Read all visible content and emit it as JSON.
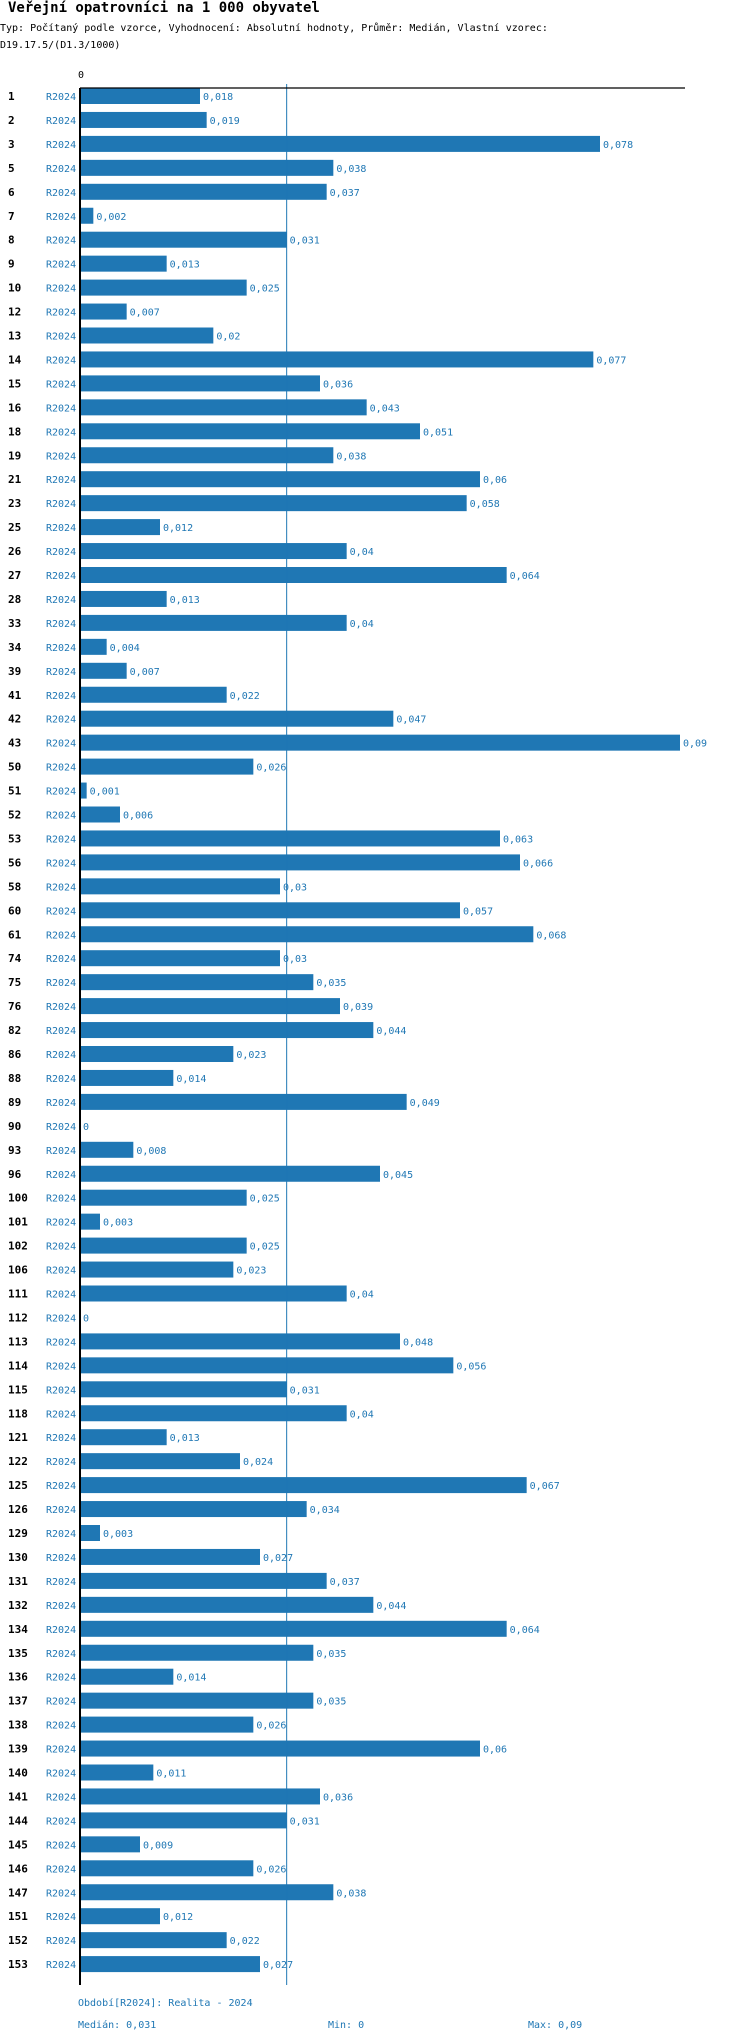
{
  "header": {
    "title": "Veřejní opatrovníci na 1 000 obyvatel",
    "subtitle": "Typ: Počítaný podle vzorce, Vyhodnocení: Absolutní hodnoty, Průměr: Medián, Vlastní vzorec: D19.17.5/(D1.3/1000)"
  },
  "chart_data": {
    "type": "bar",
    "orientation": "horizontal",
    "title": "Veřejní opatrovníci na 1 000 obyvatel",
    "series_label": "R2024",
    "axis_zero_label": "0",
    "xlim": [
      0,
      0.09
    ],
    "median": 0.031,
    "categories": [
      "1",
      "2",
      "3",
      "5",
      "6",
      "7",
      "8",
      "9",
      "10",
      "12",
      "13",
      "14",
      "15",
      "16",
      "18",
      "19",
      "21",
      "23",
      "25",
      "26",
      "27",
      "28",
      "33",
      "34",
      "39",
      "41",
      "42",
      "43",
      "50",
      "51",
      "52",
      "53",
      "56",
      "58",
      "60",
      "61",
      "74",
      "75",
      "76",
      "82",
      "86",
      "88",
      "89",
      "90",
      "93",
      "96",
      "100",
      "101",
      "102",
      "106",
      "111",
      "112",
      "113",
      "114",
      "115",
      "118",
      "121",
      "122",
      "125",
      "126",
      "129",
      "130",
      "131",
      "132",
      "134",
      "135",
      "136",
      "137",
      "138",
      "139",
      "140",
      "141",
      "144",
      "145",
      "146",
      "147",
      "151",
      "152",
      "153"
    ],
    "values": [
      0.018,
      0.019,
      0.078,
      0.038,
      0.037,
      0.002,
      0.031,
      0.013,
      0.025,
      0.007,
      0.02,
      0.077,
      0.036,
      0.043,
      0.051,
      0.038,
      0.06,
      0.058,
      0.012,
      0.04,
      0.064,
      0.013,
      0.04,
      0.004,
      0.007,
      0.022,
      0.047,
      0.09,
      0.026,
      0.001,
      0.006,
      0.063,
      0.066,
      0.03,
      0.057,
      0.068,
      0.03,
      0.035,
      0.039,
      0.044,
      0.023,
      0.014,
      0.049,
      0,
      0.008,
      0.045,
      0.025,
      0.003,
      0.025,
      0.023,
      0.04,
      0,
      0.048,
      0.056,
      0.031,
      0.04,
      0.013,
      0.024,
      0.067,
      0.034,
      0.003,
      0.027,
      0.037,
      0.044,
      0.064,
      0.035,
      0.014,
      0.035,
      0.026,
      0.06,
      0.011,
      0.036,
      0.031,
      0.009,
      0.026,
      0.038,
      0.012,
      0.022,
      0.027
    ],
    "value_labels": [
      "0,018",
      "0,019",
      "0,078",
      "0,038",
      "0,037",
      "0,002",
      "0,031",
      "0,013",
      "0,025",
      "0,007",
      "0,02",
      "0,077",
      "0,036",
      "0,043",
      "0,051",
      "0,038",
      "0,06",
      "0,058",
      "0,012",
      "0,04",
      "0,064",
      "0,013",
      "0,04",
      "0,004",
      "0,007",
      "0,022",
      "0,047",
      "0,09",
      "0,026",
      "0,001",
      "0,006",
      "0,063",
      "0,066",
      "0,03",
      "0,057",
      "0,068",
      "0,03",
      "0,035",
      "0,039",
      "0,044",
      "0,023",
      "0,014",
      "0,049",
      "0",
      "0,008",
      "0,045",
      "0,025",
      "0,003",
      "0,025",
      "0,023",
      "0,04",
      "0",
      "0,048",
      "0,056",
      "0,031",
      "0,04",
      "0,013",
      "0,024",
      "0,067",
      "0,034",
      "0,003",
      "0,027",
      "0,037",
      "0,044",
      "0,064",
      "0,035",
      "0,014",
      "0,035",
      "0,026",
      "0,06",
      "0,011",
      "0,036",
      "0,031",
      "0,009",
      "0,026",
      "0,038",
      "0,012",
      "0,022",
      "0,027"
    ]
  },
  "footer": {
    "period": "Období[R2024]: Realita - 2024",
    "median": "Medián: 0,031",
    "min": "Min: 0",
    "max": "Max: 0,09"
  },
  "colors": {
    "bar": "#1f77b4",
    "text_accent": "#1f77b4",
    "axis": "#000000"
  }
}
